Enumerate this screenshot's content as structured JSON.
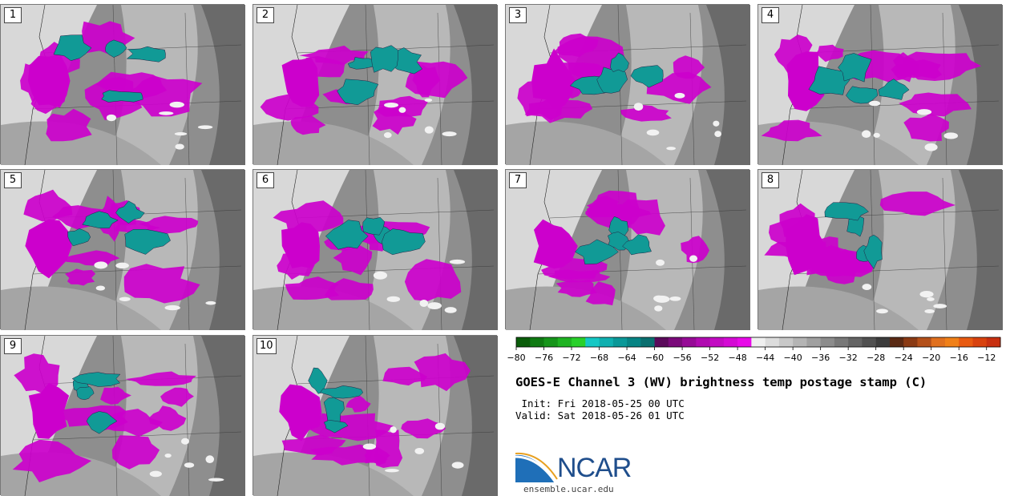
{
  "panels": [
    {
      "number": "1"
    },
    {
      "number": "2"
    },
    {
      "number": "3"
    },
    {
      "number": "4"
    },
    {
      "number": "5"
    },
    {
      "number": "6"
    },
    {
      "number": "7"
    },
    {
      "number": "8"
    },
    {
      "number": "9"
    },
    {
      "number": "10"
    }
  ],
  "colorbar": {
    "tick_labels": [
      "−80",
      "−76",
      "−72",
      "−68",
      "−64",
      "−60",
      "−56",
      "−52",
      "−48",
      "−44",
      "−40",
      "−36",
      "−32",
      "−28",
      "−24",
      "−20",
      "−16",
      "−12"
    ],
    "colors": [
      "#0a5c0a",
      "#0f7a12",
      "#16951a",
      "#1fb322",
      "#28d02a",
      "#14c8c4",
      "#0fb0b0",
      "#0a9898",
      "#068484",
      "#0a6f6f",
      "#5a0a5a",
      "#7a0a7a",
      "#960a96",
      "#b00ab0",
      "#c20ac2",
      "#d40ad4",
      "#e80ae8",
      "#f0f0f0",
      "#dcdcdc",
      "#c8c8c8",
      "#b4b4b4",
      "#a0a0a0",
      "#8c8c8c",
      "#787878",
      "#646464",
      "#505050",
      "#3c3c3c",
      "#5a2a14",
      "#8a3a14",
      "#b4501a",
      "#e0701e",
      "#f08018",
      "#e85a10",
      "#d8420e",
      "#c83010"
    ]
  },
  "title": "GOES-E Channel 3 (WV) brightness temp postage stamp (C)",
  "init_line": " Init: Fri 2018-05-25 00 UTC",
  "valid_line": "Valid: Sat 2018-05-26 01 UTC",
  "logo": {
    "text": "NCAR",
    "url": "ensemble.ucar.edu"
  },
  "colors": {
    "magenta": "#cc00cc",
    "teal": "#119a96",
    "bg_gray": "#9a9a9a"
  }
}
